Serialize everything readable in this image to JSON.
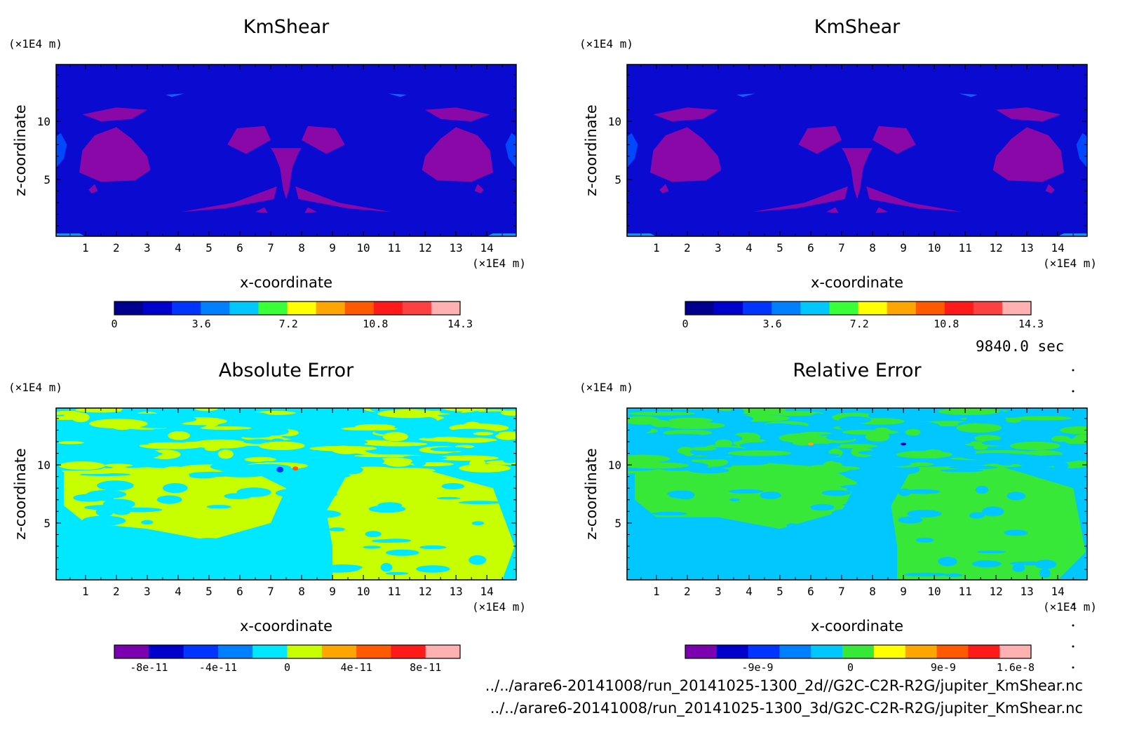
{
  "chart_data": [
    {
      "type": "heatmap",
      "title": "KmShear",
      "xlabel": "x-coordinate",
      "ylabel": "z-coordinate",
      "x_unit": "(×1E4 m)",
      "y_unit": "(×1E4 m)",
      "xlim": [
        0.05,
        14.95
      ],
      "ylim": [
        0.1,
        14.9
      ],
      "xticks": [
        1,
        2,
        3,
        4,
        5,
        6,
        7,
        8,
        9,
        10,
        11,
        12,
        13,
        14
      ],
      "yticks": [
        5,
        10
      ],
      "colorbar": {
        "colors": [
          "#00008f",
          "#0000cd",
          "#0035ff",
          "#0080ff",
          "#00c8ff",
          "#38ff38",
          "#ffff00",
          "#ffa500",
          "#ff5a00",
          "#ff1a1a",
          "#ff4040",
          "#ffb0b0"
        ],
        "ticks": [
          {
            "value": 0,
            "label": "0"
          },
          {
            "value": 3.6,
            "label": "3.6"
          },
          {
            "value": 7.2,
            "label": "7.2"
          },
          {
            "value": 10.8,
            "label": "10.8"
          },
          {
            "value": 14.3,
            "label": "14.3"
          }
        ],
        "range": [
          0,
          14.3
        ]
      }
    },
    {
      "type": "heatmap",
      "title": "KmShear",
      "xlabel": "x-coordinate",
      "ylabel": "z-coordinate",
      "x_unit": "(×1E4 m)",
      "y_unit": "(×1E4 m)",
      "xlim": [
        0.05,
        14.95
      ],
      "ylim": [
        0.1,
        14.9
      ],
      "xticks": [
        1,
        2,
        3,
        4,
        5,
        6,
        7,
        8,
        9,
        10,
        11,
        12,
        13,
        14
      ],
      "yticks": [
        5,
        10
      ],
      "colorbar": {
        "colors": [
          "#00008f",
          "#0000cd",
          "#0035ff",
          "#0080ff",
          "#00c8ff",
          "#38ff38",
          "#ffff00",
          "#ffa500",
          "#ff5a00",
          "#ff1a1a",
          "#ff4040",
          "#ffb0b0"
        ],
        "ticks": [
          {
            "value": 0,
            "label": "0"
          },
          {
            "value": 3.6,
            "label": "3.6"
          },
          {
            "value": 7.2,
            "label": "7.2"
          },
          {
            "value": 10.8,
            "label": "10.8"
          },
          {
            "value": 14.3,
            "label": "14.3"
          }
        ],
        "range": [
          0,
          14.3
        ]
      }
    },
    {
      "type": "heatmap",
      "title": "Absolute Error",
      "xlabel": "x-coordinate",
      "ylabel": "z-coordinate",
      "x_unit": "(×1E4 m)",
      "y_unit": "(×1E4 m)",
      "xlim": [
        0.05,
        14.95
      ],
      "ylim": [
        0.1,
        14.9
      ],
      "xticks": [
        1,
        2,
        3,
        4,
        5,
        6,
        7,
        8,
        9,
        10,
        11,
        12,
        13,
        14
      ],
      "yticks": [
        5,
        10
      ],
      "colorbar": {
        "colors": [
          "#7a00b0",
          "#0000cd",
          "#0035ff",
          "#0080ff",
          "#00e8ff",
          "#c8ff00",
          "#ffa500",
          "#ff5a00",
          "#ff1a1a",
          "#ffb0b0"
        ],
        "ticks": [
          {
            "value": -8e-11,
            "label": "-8e-11"
          },
          {
            "value": -4e-11,
            "label": "-4e-11"
          },
          {
            "value": 0,
            "label": "0"
          },
          {
            "value": 4e-11,
            "label": "4e-11"
          },
          {
            "value": 8e-11,
            "label": "8e-11"
          }
        ],
        "range": [
          -1e-10,
          1e-10
        ]
      }
    },
    {
      "type": "heatmap",
      "title": "Relative Error",
      "xlabel": "x-coordinate",
      "ylabel": "z-coordinate",
      "x_unit": "(×1E4 m)",
      "y_unit": "(×1E4 m)",
      "xlim": [
        0.05,
        14.95
      ],
      "ylim": [
        0.1,
        14.9
      ],
      "xticks": [
        1,
        2,
        3,
        4,
        5,
        6,
        7,
        8,
        9,
        10,
        11,
        12,
        13,
        14
      ],
      "yticks": [
        5,
        10
      ],
      "colorbar": {
        "colors": [
          "#7a00b0",
          "#0000cd",
          "#0035ff",
          "#0080ff",
          "#00c8ff",
          "#38e838",
          "#ffff00",
          "#ffa500",
          "#ff5a00",
          "#ff1a1a",
          "#ffb0b0"
        ],
        "ticks": [
          {
            "value": -9e-09,
            "label": "-9e-9"
          },
          {
            "value": 0,
            "label": "0"
          },
          {
            "value": 9e-09,
            "label": "9e-9"
          },
          {
            "value": 1.6e-08,
            "label": "1.6e-8"
          }
        ],
        "range": [
          -1.6e-08,
          1.75e-08
        ]
      }
    }
  ],
  "time_label": "9840.0 sec",
  "file_paths": [
    "../../arare6-20141008/run_20141025-1300_2d//G2C-C2R-R2G/jupiter_KmShear.nc",
    "../../arare6-20141008/run_20141025-1300_3d/G2C-C2R-R2G/jupiter_KmShear.nc"
  ]
}
